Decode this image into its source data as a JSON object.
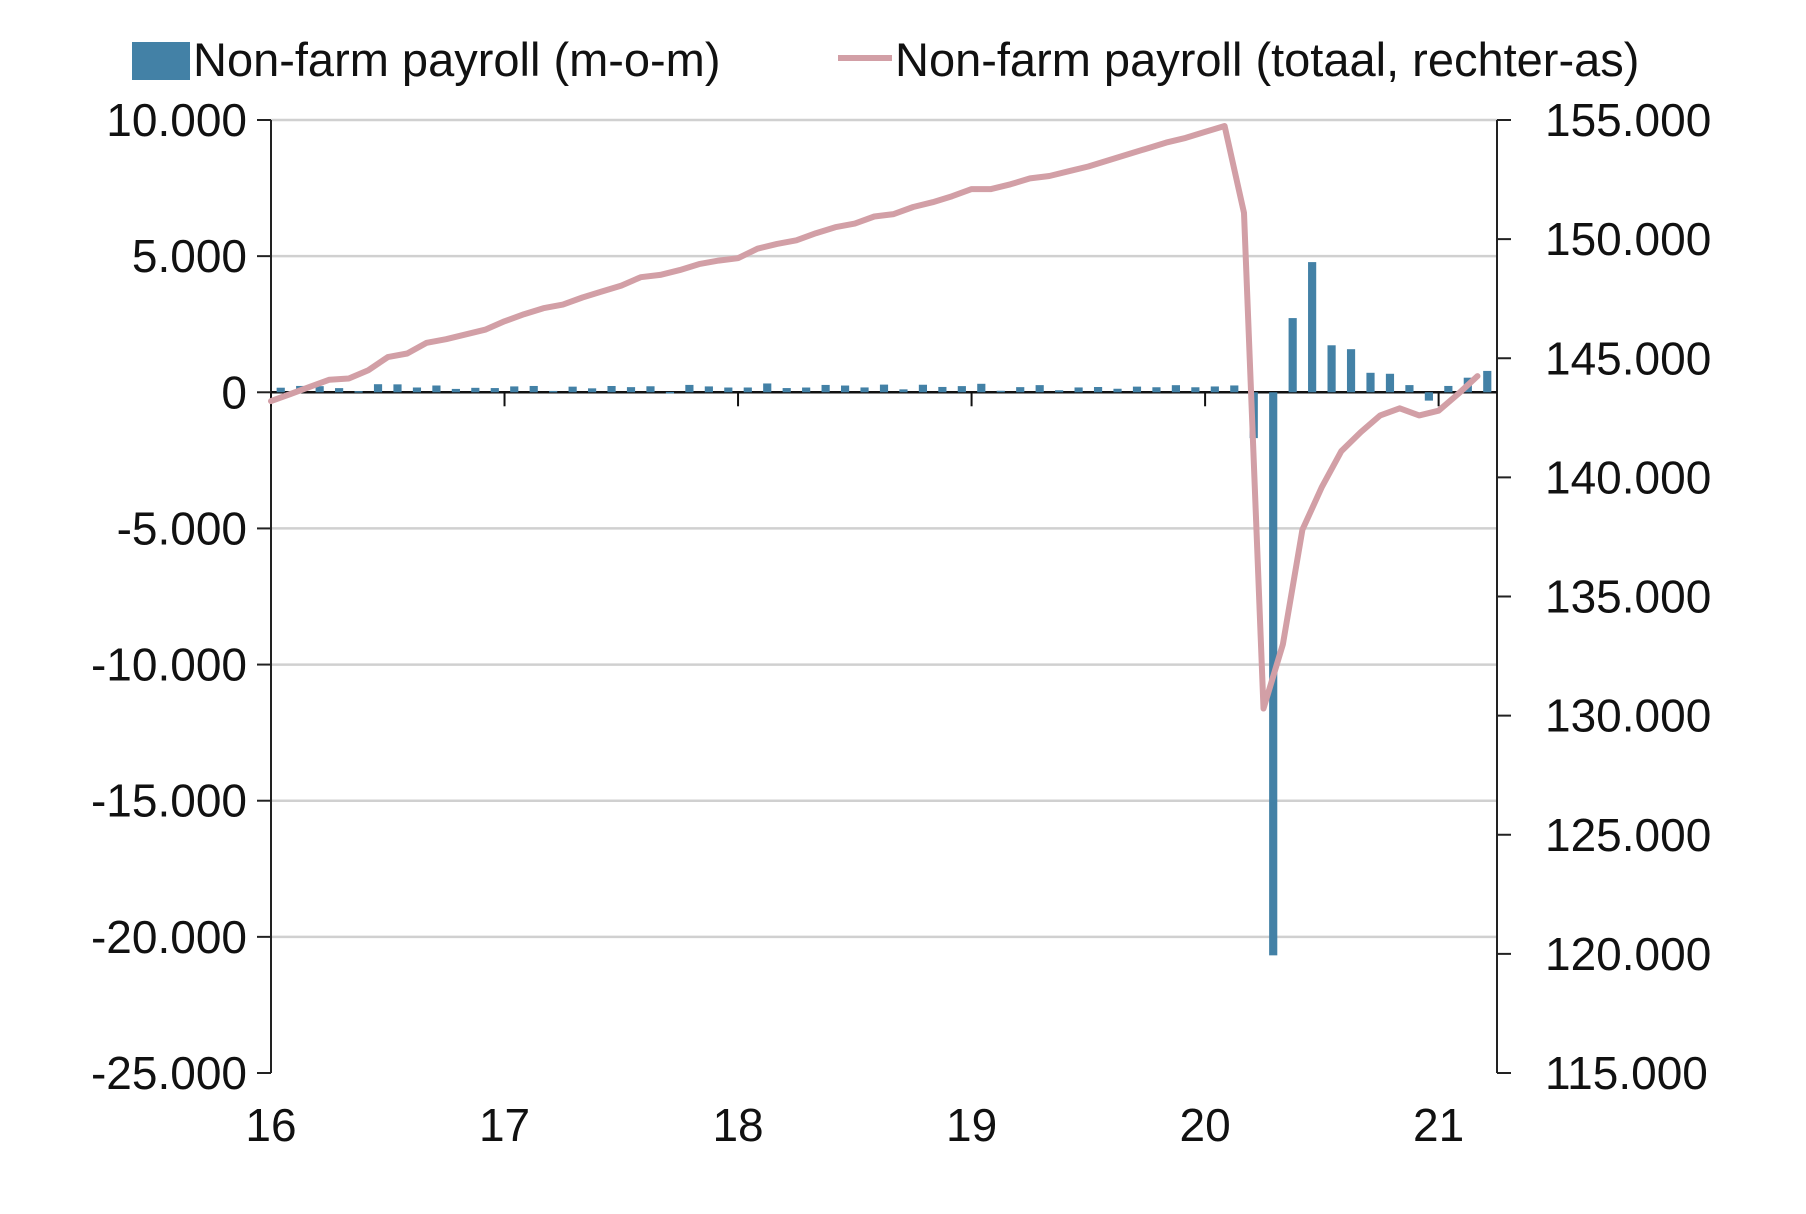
{
  "chart_data": {
    "type": "bar+line",
    "title": "",
    "xlabel": "",
    "ylabel": "",
    "grid": true,
    "legend_position": "top",
    "x_ticks": [
      "16",
      "17",
      "18",
      "19",
      "20",
      "21"
    ],
    "y_left": {
      "min": -25000,
      "max": 10000,
      "ticks": [
        10000,
        5000,
        0,
        -5000,
        -10000,
        -15000,
        -20000,
        -25000
      ],
      "tick_labels": [
        "10.000",
        "5.000",
        "0",
        "-5.000",
        "-10.000",
        "-15.000",
        "-20.000",
        "-25.000"
      ]
    },
    "y_right": {
      "min": 115000,
      "max": 155000,
      "ticks": [
        155000,
        150000,
        145000,
        140000,
        135000,
        130000,
        125000,
        120000,
        115000
      ],
      "tick_labels": [
        "155.000",
        "150.000",
        "145.000",
        "140.000",
        "135.000",
        "130.000",
        "125.000",
        "120.000",
        "115.000"
      ]
    },
    "start_year": 2016,
    "series": [
      {
        "name": "Non-farm payroll (m-o-m)",
        "type": "bar",
        "axis": "left",
        "color": "#4381a6",
        "values": [
          168,
          233,
          225,
          153,
          43,
          297,
          291,
          176,
          249,
          124,
          164,
          155,
          216,
          232,
          50,
          207,
          145,
          231,
          189,
          221,
          14,
          271,
          216,
          175,
          176,
          324,
          155,
          175,
          270,
          248,
          178,
          282,
          108,
          277,
          196,
          227,
          312,
          56,
          189,
          263,
          75,
          178,
          194,
          130,
          208,
          185,
          261,
          184,
          214,
          251,
          -1683,
          -20679,
          2725,
          4781,
          1726,
          1583,
          716,
          680,
          264,
          -306,
          233,
          536,
          785
        ]
      },
      {
        "name": "Non-farm payroll (totaal, rechter-as)",
        "type": "line",
        "axis": "right",
        "color": "#d29fa6",
        "values": [
          143200,
          143500,
          143800,
          144100,
          144150,
          144500,
          145050,
          145200,
          145650,
          145800,
          146000,
          146200,
          146550,
          146850,
          147100,
          147250,
          147550,
          147800,
          148050,
          148400,
          148500,
          148700,
          148950,
          149100,
          149200,
          149600,
          149800,
          149950,
          150250,
          150500,
          150650,
          150950,
          151050,
          151350,
          151550,
          151800,
          152100,
          152100,
          152300,
          152550,
          152650,
          152850,
          153050,
          153300,
          153550,
          153800,
          154050,
          154250,
          154500,
          154750,
          151100,
          130300,
          133000,
          137800,
          139600,
          141100,
          141900,
          142600,
          142900,
          142600,
          142800,
          143500,
          144250
        ]
      }
    ]
  }
}
